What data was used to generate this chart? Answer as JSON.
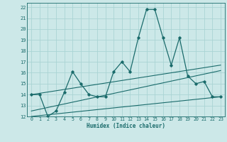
{
  "xlabel": "Humidex (Indice chaleur)",
  "xlim": [
    -0.5,
    23.5
  ],
  "ylim": [
    12,
    22.4
  ],
  "xticks": [
    0,
    1,
    2,
    3,
    4,
    5,
    6,
    7,
    8,
    9,
    10,
    11,
    12,
    13,
    14,
    15,
    16,
    17,
    18,
    19,
    20,
    21,
    22,
    23
  ],
  "yticks": [
    12,
    13,
    14,
    15,
    16,
    17,
    18,
    19,
    20,
    21,
    22
  ],
  "bg_color": "#cce8e8",
  "line_color": "#1a6b6b",
  "grid_color": "#aad4d4",
  "line1_x": [
    0,
    1,
    2,
    3,
    4,
    5,
    6,
    7,
    8,
    9,
    10,
    11,
    12,
    13,
    14,
    15,
    16,
    17,
    18,
    19,
    20,
    21,
    22,
    23
  ],
  "line1_y": [
    14.0,
    14.0,
    12.0,
    12.5,
    14.2,
    16.1,
    15.0,
    14.0,
    13.8,
    13.8,
    16.1,
    17.0,
    16.1,
    19.2,
    21.8,
    21.8,
    19.2,
    16.7,
    19.2,
    15.7,
    15.0,
    15.2,
    13.8,
    13.8
  ],
  "line2_x": [
    0,
    23
  ],
  "line2_y": [
    14.0,
    16.7
  ],
  "line3_x": [
    0,
    23
  ],
  "line3_y": [
    12.5,
    16.2
  ],
  "line4_x": [
    0,
    23
  ],
  "line4_y": [
    12.0,
    13.8
  ]
}
